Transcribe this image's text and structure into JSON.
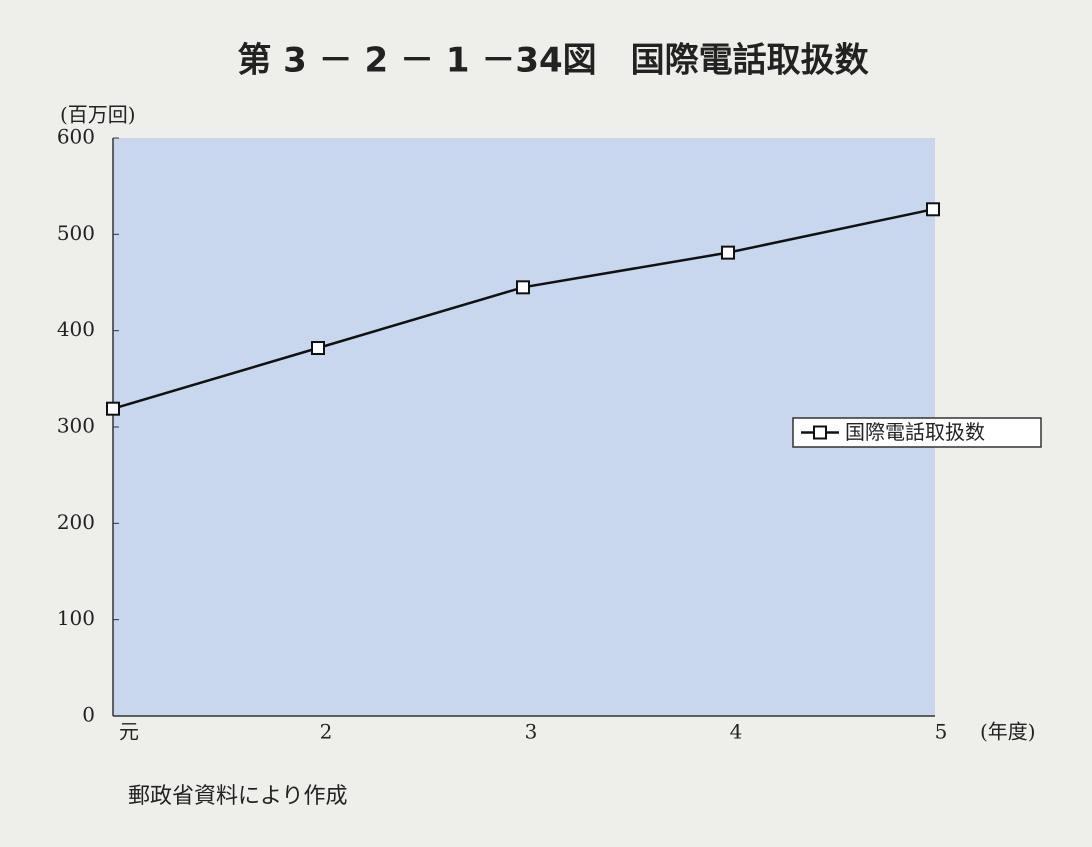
{
  "chart_data": {
    "type": "line",
    "title": "第 3 － 2 － 1 －34図　国際電話取扱数",
    "y_label": "(百万回)",
    "x_label": "(年度)",
    "source": "郵政省資料により作成",
    "categories": [
      "元",
      "2",
      "3",
      "4",
      "5"
    ],
    "series": [
      {
        "name": "国際電話取扱数",
        "color": "#111111",
        "values": [
          319,
          382,
          445,
          481,
          526
        ]
      }
    ],
    "ylim": [
      0,
      600
    ],
    "yticks": [
      0,
      100,
      200,
      300,
      400,
      500,
      600
    ],
    "grid": false,
    "plot_background": "#c8d6ee",
    "legend": "right"
  }
}
